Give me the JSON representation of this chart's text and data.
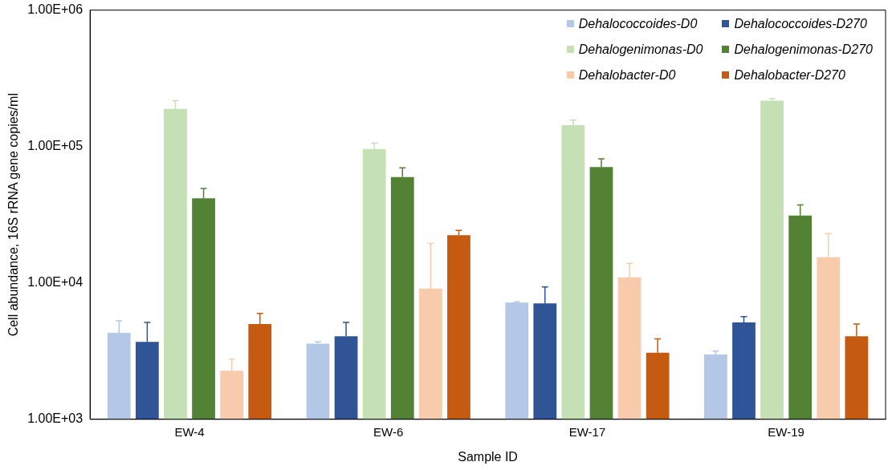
{
  "chart_data": {
    "type": "bar",
    "xlabel": "Sample ID",
    "ylabel": "Cell abundance, 16S rRNA gene copies/ml",
    "categories": [
      "EW-4",
      "EW-6",
      "EW-17",
      "EW-19"
    ],
    "series": [
      {
        "name": "Dehalococcoides-D0",
        "color": "#b4c7e7",
        "values": [
          4300,
          3580,
          7170,
          2990
        ],
        "errors": [
          [
            4300,
            5280
          ],
          [
            3580,
            3690
          ],
          [
            7170,
            7270
          ],
          [
            2990,
            3160
          ]
        ]
      },
      {
        "name": "Dehalococcoides-D270",
        "color": "#2f5597",
        "values": [
          3690,
          4060,
          7070,
          5140
        ],
        "errors": [
          [
            3690,
            5140
          ],
          [
            4060,
            5140
          ],
          [
            7070,
            9330
          ],
          [
            5140,
            5660
          ]
        ]
      },
      {
        "name": "Dehalogenimonas-D0",
        "color": "#c5e0b4",
        "values": [
          189000,
          95900,
          143500,
          217000
        ],
        "errors": [
          [
            189000,
            217000
          ],
          [
            95900,
            105700
          ],
          [
            143500,
            156000
          ],
          [
            217000,
            224000
          ]
        ]
      },
      {
        "name": "Dehalogenimonas-D270",
        "color": "#548235",
        "values": [
          41700,
          59800,
          70700,
          31200
        ],
        "errors": [
          [
            41700,
            49300
          ],
          [
            59800,
            69700
          ],
          [
            70700,
            81200
          ],
          [
            31200,
            37300
          ]
        ]
      },
      {
        "name": "Dehalobacter-D0",
        "color": "#f8cbad",
        "values": [
          2270,
          9080,
          11000,
          15400
        ],
        "errors": [
          [
            2270,
            2750
          ],
          [
            9080,
            19500
          ],
          [
            11000,
            13950
          ],
          [
            15400,
            23000
          ]
        ]
      },
      {
        "name": "Dehalobacter-D270",
        "color": "#c55a11",
        "values": [
          5000,
          22400,
          3080,
          4060
        ],
        "errors": [
          [
            5000,
            5980
          ],
          [
            22400,
            24300
          ],
          [
            3080,
            3890
          ],
          [
            4060,
            5000
          ]
        ]
      }
    ],
    "log": true,
    "ylim": [
      1000,
      1000000
    ],
    "yticks": [
      {
        "value": 1000,
        "label": "1.00E+03"
      },
      {
        "value": 10000,
        "label": "1.00E+04"
      },
      {
        "value": 100000,
        "label": "1.00E+05"
      },
      {
        "value": 1000000,
        "label": "1.00E+06"
      }
    ],
    "grid": false,
    "legend": "top right"
  }
}
